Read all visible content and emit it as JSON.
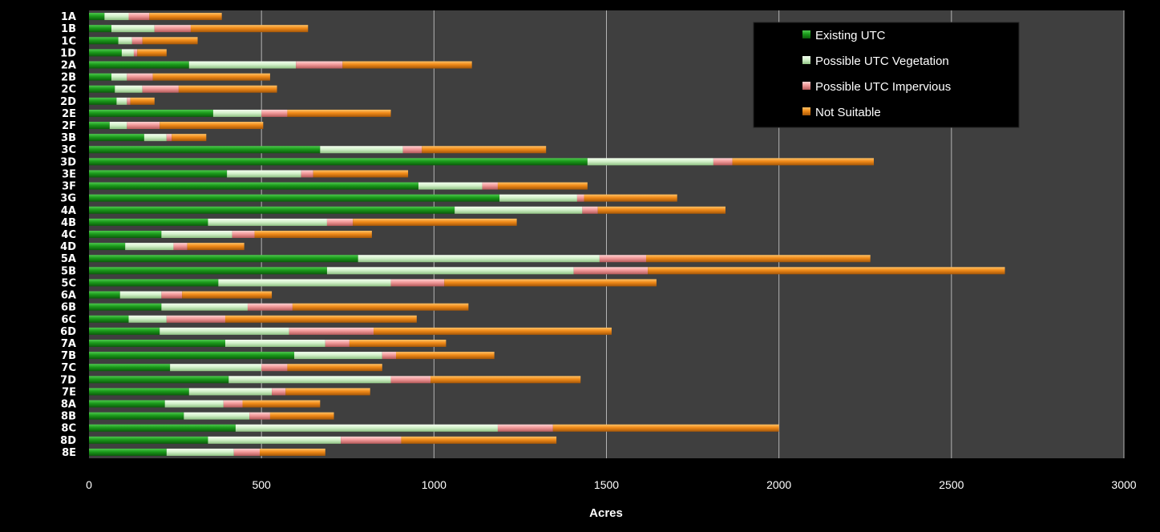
{
  "chart_data": {
    "type": "bar",
    "orientation": "horizontal",
    "stacked": true,
    "xlabel": "Acres",
    "xlim": [
      0,
      3000
    ],
    "xticks": [
      0,
      500,
      1000,
      1500,
      2000,
      2500,
      3000
    ],
    "grid": true,
    "legend_position": "top-right",
    "categories": [
      "1A",
      "1B",
      "1C",
      "1D",
      "2A",
      "2B",
      "2C",
      "2D",
      "2E",
      "2F",
      "3B",
      "3C",
      "3D",
      "3E",
      "3F",
      "3G",
      "4A",
      "4B",
      "4C",
      "4D",
      "5A",
      "5B",
      "5C",
      "6A",
      "6B",
      "6C",
      "6D",
      "7A",
      "7B",
      "7C",
      "7D",
      "7E",
      "8A",
      "8B",
      "8C",
      "8D",
      "8E"
    ],
    "series": [
      {
        "name": "Existing UTC",
        "color": "#1e9a1e",
        "values": [
          45,
          65,
          85,
          95,
          290,
          65,
          75,
          80,
          360,
          60,
          160,
          670,
          1445,
          400,
          955,
          1190,
          1060,
          345,
          210,
          105,
          780,
          690,
          375,
          90,
          210,
          115,
          205,
          395,
          595,
          235,
          405,
          290,
          220,
          275,
          425,
          345,
          225
        ]
      },
      {
        "name": "Possible UTC Vegetation",
        "color": "#dcf5d5",
        "values": [
          70,
          125,
          40,
          35,
          310,
          45,
          80,
          30,
          140,
          50,
          65,
          240,
          365,
          215,
          185,
          225,
          370,
          345,
          205,
          140,
          700,
          715,
          500,
          120,
          250,
          110,
          375,
          290,
          255,
          265,
          470,
          240,
          170,
          190,
          760,
          385,
          195
        ]
      },
      {
        "name": "Possible UTC Impervious",
        "color": "#f2a7a7",
        "values": [
          60,
          105,
          30,
          10,
          135,
          75,
          105,
          10,
          75,
          95,
          15,
          55,
          55,
          35,
          45,
          20,
          45,
          75,
          65,
          40,
          135,
          215,
          155,
          60,
          130,
          170,
          245,
          70,
          40,
          75,
          115,
          40,
          55,
          60,
          160,
          175,
          75
        ]
      },
      {
        "name": "Not Suitable",
        "color": "#ee8a1a",
        "values": [
          210,
          340,
          160,
          85,
          375,
          340,
          285,
          70,
          300,
          300,
          100,
          360,
          410,
          275,
          260,
          270,
          370,
          475,
          340,
          165,
          650,
          1035,
          615,
          260,
          510,
          555,
          690,
          280,
          285,
          275,
          435,
          245,
          225,
          185,
          655,
          450,
          190
        ]
      }
    ]
  }
}
